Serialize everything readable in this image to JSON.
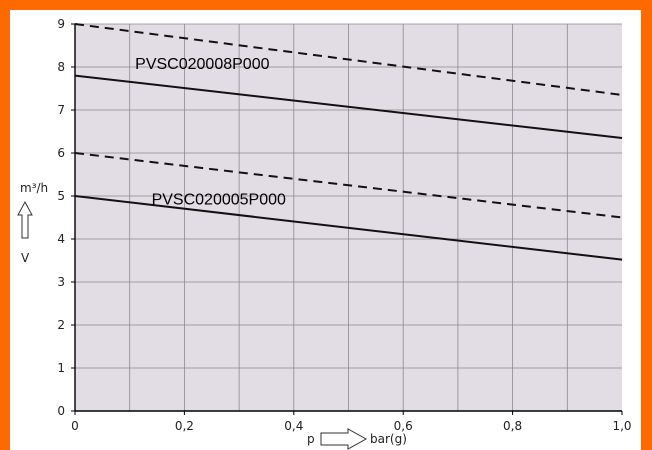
{
  "chart_data": {
    "type": "line",
    "xlabel": "p",
    "xunit": "bar(g)",
    "ylabel": "V",
    "yunit": "m³/h",
    "xlim": [
      0,
      1.0
    ],
    "ylim": [
      0,
      9
    ],
    "grid": true,
    "x_ticks": [
      0,
      0.2,
      0.4,
      0.6,
      0.8,
      1.0
    ],
    "x_tick_labels": [
      "0",
      "0,2",
      "0,4",
      "0,6",
      "0,8",
      "1,0"
    ],
    "y_ticks": [
      0,
      1,
      2,
      3,
      4,
      5,
      6,
      7,
      8,
      9
    ],
    "y_tick_labels": [
      "0",
      "1",
      "2",
      "3",
      "4",
      "5",
      "6",
      "7",
      "8",
      "9"
    ],
    "series": [
      {
        "name": "PVSC020008P000",
        "style": "solid",
        "x": [
          0,
          1.0
        ],
        "values": [
          7.8,
          6.35
        ]
      },
      {
        "style": "dashed",
        "x": [
          0,
          1.0
        ],
        "values": [
          9.0,
          7.35
        ]
      },
      {
        "name": "PVSC020005P000",
        "style": "solid",
        "x": [
          0,
          1.0
        ],
        "values": [
          5.0,
          3.52
        ]
      },
      {
        "style": "dashed",
        "x": [
          0,
          1.0
        ],
        "values": [
          6.0,
          4.5
        ]
      }
    ],
    "annotations": [
      {
        "text": "PVSC020008P000",
        "x": 0.11,
        "y": 7.95
      },
      {
        "text": "PVSC020005P000",
        "x": 0.14,
        "y": 4.8
      }
    ]
  },
  "colors": {
    "plot_background": "#e2dce4",
    "grid": "#8a8a8a",
    "line": "#111111",
    "frame_accent": "#ff6a00"
  }
}
